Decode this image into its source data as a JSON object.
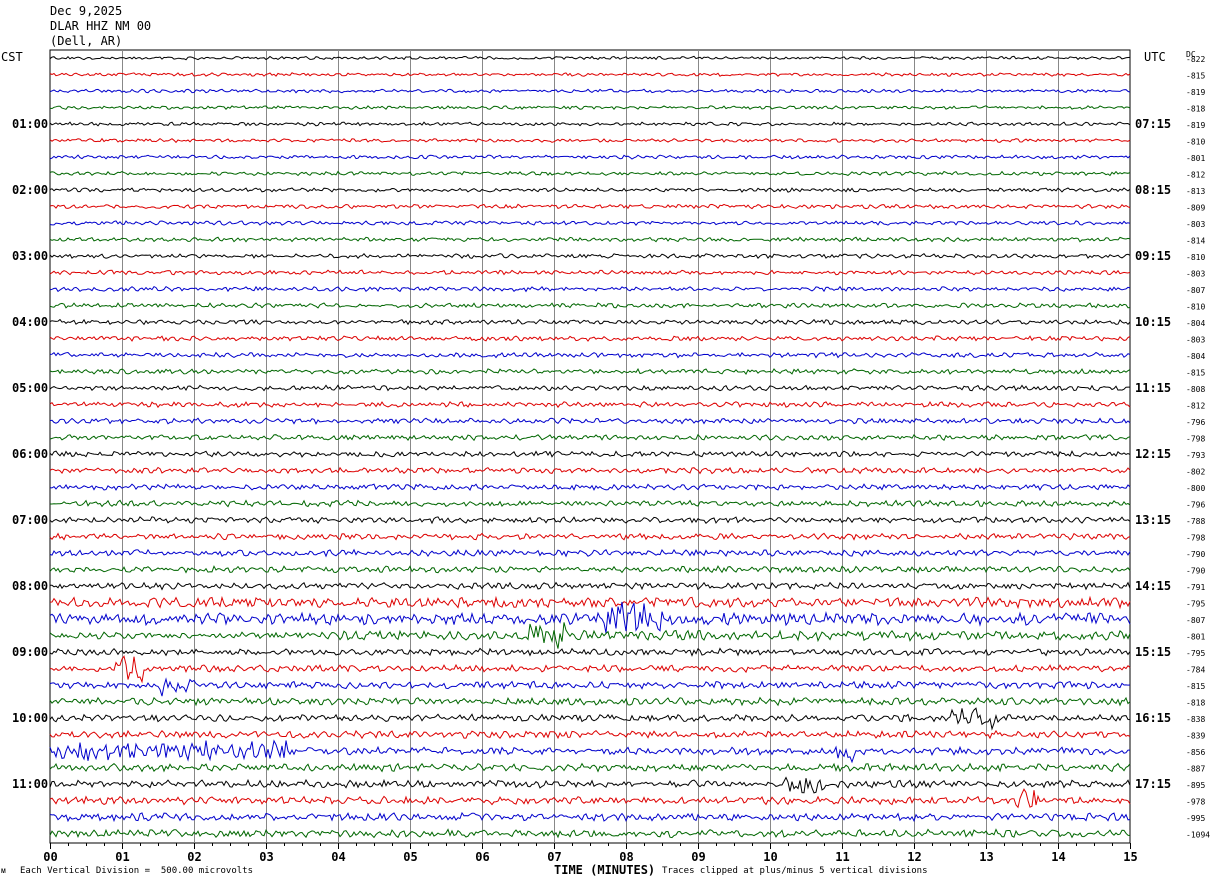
{
  "header": {
    "date": "Dec 9,2025",
    "station": "DLAR HHZ NM 00",
    "location": "(Dell, AR)"
  },
  "left_tz": "CST",
  "right_tz": "UTC",
  "dc_label": "DC",
  "footer": {
    "scale_note": "Each Vertical Division =  500.00 microvolts",
    "clip_note": "Traces clipped at plus/minus 5 vertical divisions",
    "mark": "ᴍ"
  },
  "colors": {
    "trace_cycle": [
      "#000000",
      "#dd0000",
      "#0000cc",
      "#006600"
    ],
    "grid": "#888888"
  },
  "chart_data": {
    "type": "line",
    "xlabel": "TIME (MINUTES)",
    "xlim": [
      0,
      15
    ],
    "x_ticks": [
      "00",
      "01",
      "02",
      "03",
      "04",
      "05",
      "06",
      "07",
      "08",
      "09",
      "10",
      "11",
      "12",
      "13",
      "14",
      "15"
    ],
    "left_hour_labels": [
      "01:00",
      "02:00",
      "03:00",
      "04:00",
      "05:00",
      "06:00",
      "07:00",
      "08:00",
      "09:00",
      "10:00",
      "11:00"
    ],
    "right_hour_labels": [
      "07:15",
      "08:15",
      "09:15",
      "10:15",
      "11:15",
      "12:15",
      "13:15",
      "14:15",
      "15:15",
      "16:15",
      "17:15"
    ],
    "dc_offsets": [
      "-822",
      "-815",
      "-819",
      "-818",
      "-819",
      "-810",
      "-801",
      "-812",
      "-813",
      "-809",
      "-803",
      "-814",
      "-810",
      "-803",
      "-807",
      "-810",
      "-804",
      "-803",
      "-804",
      "-815",
      "-808",
      "-812",
      "-796",
      "-798",
      "-793",
      "-802",
      "-800",
      "-796",
      "-788",
      "-798",
      "-790",
      "-790",
      "-791",
      "-795",
      "-807",
      "-801",
      "-795",
      "-784",
      "-815",
      "-818",
      "-838",
      "-839",
      "-856",
      "-887",
      "-895",
      "-978",
      "-995",
      "-1094"
    ],
    "trace_count": 48,
    "lines_per_hour": 4,
    "minutes_per_line": 15,
    "vertical_division_microvolts": 500,
    "clip_divisions": 5
  }
}
